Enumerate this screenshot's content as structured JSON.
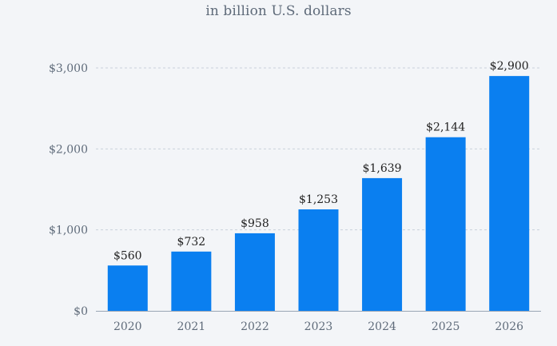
{
  "chart_data": {
    "type": "bar",
    "subtitle": "in billion U.S. dollars",
    "categories": [
      "2020",
      "2021",
      "2022",
      "2023",
      "2024",
      "2025",
      "2026"
    ],
    "values": [
      560,
      732,
      958,
      1253,
      1639,
      2144,
      2900
    ],
    "value_labels": [
      "$560",
      "$732",
      "$958",
      "$1,253",
      "$1,639",
      "$2,144",
      "$2,900"
    ],
    "y_ticks": [
      0,
      1000,
      2000,
      3000
    ],
    "y_tick_labels": [
      "$0",
      "$1,000",
      "$2,000",
      "$3,000"
    ],
    "ylim": [
      0,
      3000
    ],
    "grid": true,
    "bar_color": "#0a7ff0",
    "grid_color": "#c9d1db",
    "axis_color": "#9aa6b4"
  }
}
